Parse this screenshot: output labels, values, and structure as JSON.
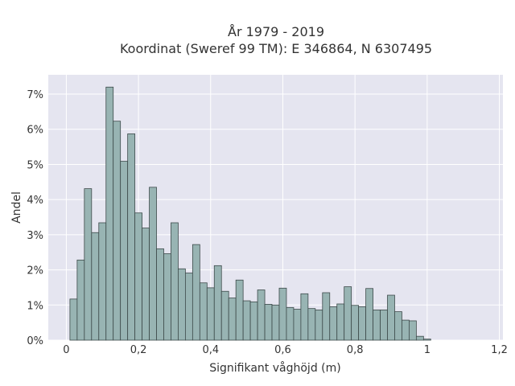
{
  "chart_data": {
    "type": "bar",
    "title_line1": "År 1979 - 2019",
    "title_line2": "Koordinat (Sweref 99 TM): E 346864, N 6307495",
    "xlabel": "Signifikant våghöjd (m)",
    "ylabel": "Andel",
    "xlim": [
      -0.05,
      1.21
    ],
    "ylim": [
      0,
      7.55
    ],
    "x_ticks": [
      0,
      0.2,
      0.4,
      0.6,
      0.8,
      1.0,
      1.2
    ],
    "x_tick_labels": [
      "0",
      "0,2",
      "0,4",
      "0,6",
      "0,8",
      "1",
      "1,2"
    ],
    "y_ticks": [
      0,
      1,
      2,
      3,
      4,
      5,
      6,
      7
    ],
    "y_tick_labels": [
      "0%",
      "1%",
      "2%",
      "3%",
      "4%",
      "5%",
      "6%",
      "7%"
    ],
    "bin_start": 0.01,
    "bin_width": 0.02,
    "values": [
      1.17,
      2.28,
      4.31,
      3.06,
      3.34,
      7.2,
      6.23,
      5.09,
      5.87,
      3.62,
      3.19,
      4.35,
      2.6,
      2.46,
      3.34,
      2.03,
      1.91,
      2.72,
      1.63,
      1.49,
      2.12,
      1.39,
      1.2,
      1.71,
      1.12,
      1.09,
      1.43,
      1.02,
      1.0,
      1.48,
      0.93,
      0.88,
      1.32,
      0.9,
      0.86,
      1.35,
      0.95,
      1.03,
      1.52,
      0.99,
      0.95,
      1.47,
      0.86,
      0.86,
      1.28,
      0.81,
      0.57,
      0.55,
      0.11,
      0.03
    ],
    "grid": true,
    "colors": {
      "bar_fill": "#98b4b3",
      "bar_edge": "#3d4a4a",
      "plot_bg": "#e5e5f0",
      "grid": "#ffffff"
    }
  }
}
